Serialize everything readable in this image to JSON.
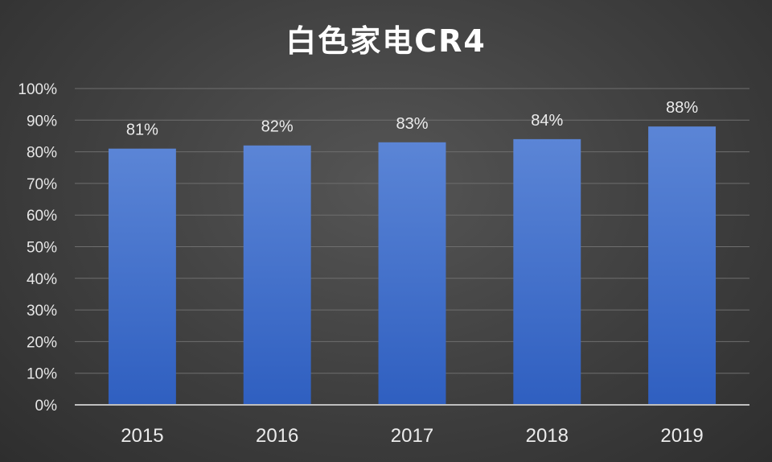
{
  "chart_data": {
    "type": "bar",
    "title": "白色家电CR4",
    "categories": [
      "2015",
      "2016",
      "2017",
      "2018",
      "2019"
    ],
    "values": [
      81,
      82,
      83,
      84,
      88
    ],
    "data_labels": [
      "81%",
      "82%",
      "83%",
      "84%",
      "88%"
    ],
    "y_ticks": [
      0,
      10,
      20,
      30,
      40,
      50,
      60,
      70,
      80,
      90,
      100
    ],
    "y_tick_labels": [
      "0%",
      "10%",
      "20%",
      "30%",
      "40%",
      "50%",
      "60%",
      "70%",
      "80%",
      "90%",
      "100%"
    ],
    "ylim": [
      0,
      100
    ],
    "xlabel": "",
    "ylabel": "",
    "grid": true,
    "legend": "none",
    "bar_color_top": "#5b85d6",
    "bar_color_bottom": "#2f5fc0",
    "background": "#404040"
  }
}
